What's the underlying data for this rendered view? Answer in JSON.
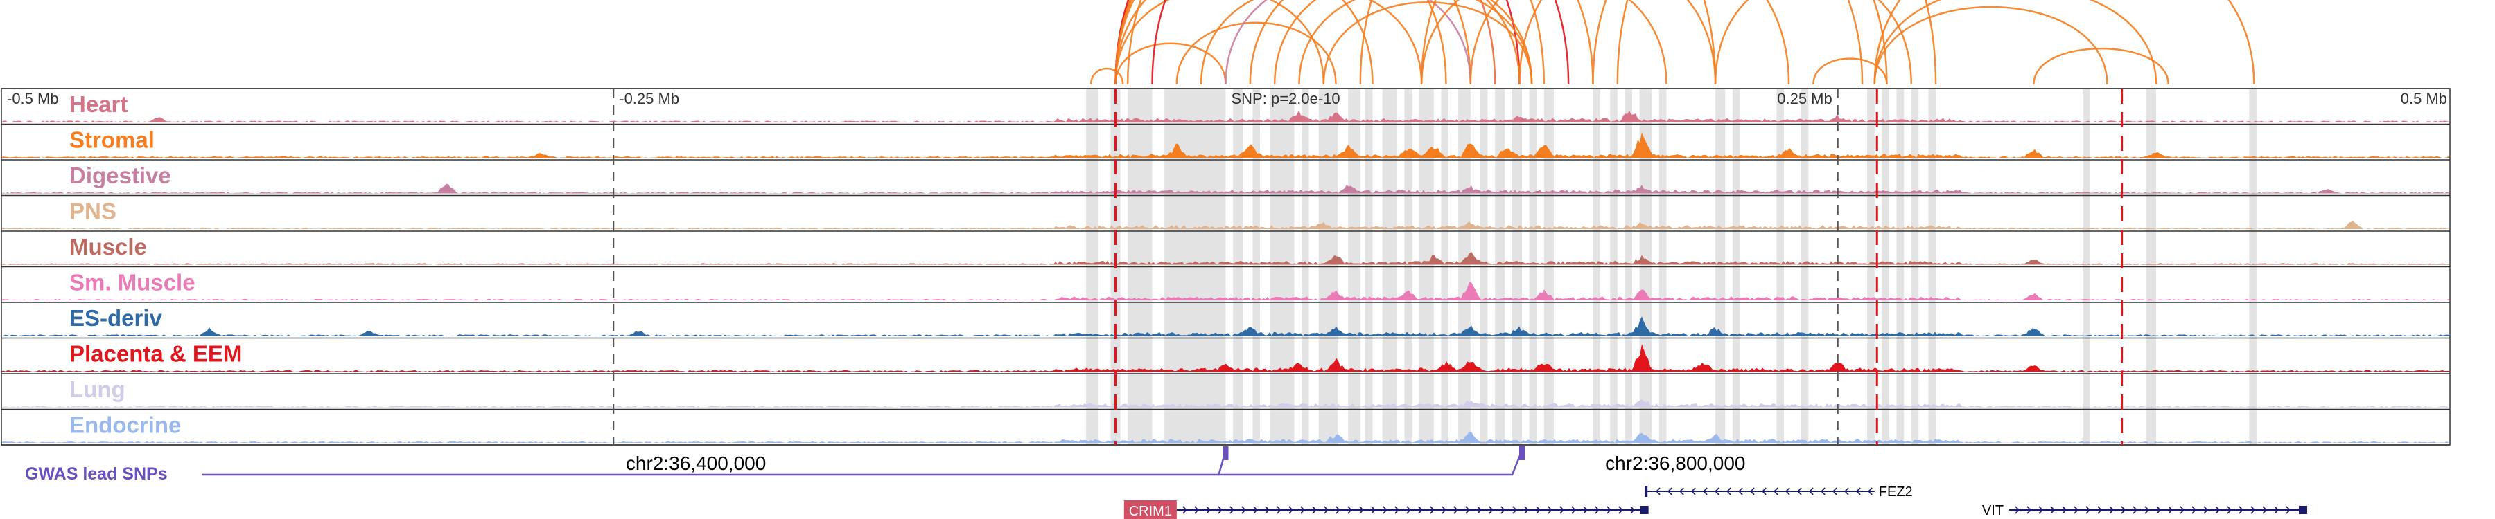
{
  "chart_data": {
    "type": "area",
    "title": "",
    "axis": {
      "ticks": [
        {
          "pos": -0.5,
          "label": "-0.5 Mb"
        },
        {
          "pos": -0.25,
          "label": "-0.25 Mb"
        },
        {
          "pos": 0.25,
          "label": "0.25 Mb"
        },
        {
          "pos": 0.5,
          "label": "0.5 Mb"
        }
      ],
      "range": [
        -0.5,
        0.5
      ],
      "unit": "Mb"
    },
    "snp_label": "SNP: p=2.0e-10",
    "tracks": [
      {
        "name": "Heart",
        "color": "#d77387",
        "peaks": [
          [
            -0.436,
            0.18
          ],
          [
            0.03,
            0.35
          ],
          [
            0.045,
            0.3
          ],
          [
            0.165,
            0.45
          ],
          [
            0.12,
            0.2
          ],
          [
            0.25,
            0.15
          ]
        ]
      },
      {
        "name": "Stromal",
        "color": "#f47e1f",
        "peaks": [
          [
            -0.28,
            0.2
          ],
          [
            -0.02,
            0.45
          ],
          [
            0.01,
            0.55
          ],
          [
            0.05,
            0.5
          ],
          [
            0.075,
            0.35
          ],
          [
            0.085,
            0.45
          ],
          [
            0.1,
            0.6
          ],
          [
            0.115,
            0.4
          ],
          [
            0.13,
            0.5
          ],
          [
            0.17,
            0.95
          ],
          [
            0.23,
            0.3
          ],
          [
            0.33,
            0.35
          ],
          [
            0.38,
            0.2
          ]
        ]
      },
      {
        "name": "Digestive",
        "color": "#c67fa1",
        "peaks": [
          [
            -0.318,
            0.45
          ],
          [
            0.05,
            0.25
          ],
          [
            0.1,
            0.2
          ],
          [
            0.17,
            0.25
          ],
          [
            0.45,
            0.2
          ]
        ]
      },
      {
        "name": "PNS",
        "color": "#e0b48e",
        "peaks": [
          [
            0.04,
            0.15
          ],
          [
            0.1,
            0.2
          ],
          [
            0.17,
            0.2
          ],
          [
            0.46,
            0.3
          ]
        ]
      },
      {
        "name": "Muscle",
        "color": "#bd6b62",
        "peaks": [
          [
            0.045,
            0.3
          ],
          [
            0.1,
            0.45
          ],
          [
            0.085,
            0.3
          ],
          [
            0.17,
            0.25
          ],
          [
            0.33,
            0.2
          ]
        ]
      },
      {
        "name": "Sm. Muscle",
        "color": "#ea7bb6",
        "peaks": [
          [
            0.045,
            0.35
          ],
          [
            0.075,
            0.3
          ],
          [
            0.1,
            0.6
          ],
          [
            0.13,
            0.3
          ],
          [
            0.17,
            0.35
          ],
          [
            0.33,
            0.3
          ]
        ]
      },
      {
        "name": "ES-deriv",
        "color": "#2e6ba6",
        "peaks": [
          [
            -0.415,
            0.3
          ],
          [
            -0.35,
            0.2
          ],
          [
            -0.24,
            0.2
          ],
          [
            0.01,
            0.3
          ],
          [
            0.045,
            0.3
          ],
          [
            0.1,
            0.35
          ],
          [
            0.12,
            0.3
          ],
          [
            0.17,
            0.7
          ],
          [
            0.2,
            0.25
          ],
          [
            0.33,
            0.35
          ]
        ]
      },
      {
        "name": "Placenta & EEM",
        "color": "#e3151c",
        "peaks": [
          [
            0.0,
            0.3
          ],
          [
            0.03,
            0.3
          ],
          [
            0.045,
            0.4
          ],
          [
            0.09,
            0.3
          ],
          [
            0.1,
            0.4
          ],
          [
            0.13,
            0.35
          ],
          [
            0.17,
            1.0
          ],
          [
            0.195,
            0.3
          ],
          [
            0.25,
            0.35
          ],
          [
            0.33,
            0.3
          ]
        ]
      },
      {
        "name": "Lung",
        "color": "#cfcde8",
        "peaks": [
          [
            0.1,
            0.2
          ],
          [
            0.17,
            0.3
          ]
        ]
      },
      {
        "name": "Endocrine",
        "color": "#9ab8eb",
        "peaks": [
          [
            0.045,
            0.3
          ],
          [
            0.1,
            0.4
          ],
          [
            0.17,
            0.4
          ],
          [
            0.2,
            0.25
          ]
        ]
      }
    ],
    "coords": [
      {
        "pos": -0.245,
        "label": "chr2:36,400,000"
      },
      {
        "pos": 0.155,
        "label": "chr2:36,800,000"
      }
    ],
    "gwas": {
      "label": "GWAS lead SNPs",
      "color": "#6a4fc0",
      "snps": [
        0.0,
        0.121
      ]
    },
    "genes": [
      {
        "name": "CRIM1",
        "start": -0.02,
        "end": 0.171,
        "strand": "+",
        "highlight": true,
        "color": "#d04f64"
      },
      {
        "name": "FEZ2",
        "start": 0.172,
        "end": 0.265,
        "strand": "-",
        "highlight": false,
        "color": "#1a1a6e"
      },
      {
        "name": "VIT",
        "start": 0.32,
        "end": 0.44,
        "strand": "+",
        "highlight": false,
        "color": "#1a1a6e"
      }
    ],
    "red_lines": [
      -0.045,
      0.266,
      0.366
    ],
    "gray_bands": [
      [
        -0.057,
        -0.052
      ],
      [
        -0.047,
        -0.043
      ],
      [
        -0.04,
        -0.03
      ],
      [
        -0.025,
        0.0
      ],
      [
        0.003,
        0.007
      ],
      [
        0.011,
        0.014
      ],
      [
        0.018,
        0.028
      ],
      [
        0.031,
        0.034
      ],
      [
        0.038,
        0.046
      ],
      [
        0.05,
        0.055
      ],
      [
        0.057,
        0.06
      ],
      [
        0.064,
        0.07
      ],
      [
        0.073,
        0.076
      ],
      [
        0.079,
        0.085
      ],
      [
        0.088,
        0.091
      ],
      [
        0.095,
        0.1
      ],
      [
        0.104,
        0.107
      ],
      [
        0.11,
        0.114
      ],
      [
        0.117,
        0.121
      ],
      [
        0.124,
        0.127
      ],
      [
        0.13,
        0.134
      ],
      [
        0.15,
        0.153
      ],
      [
        0.157,
        0.16
      ],
      [
        0.163,
        0.166
      ],
      [
        0.169,
        0.174
      ],
      [
        0.177,
        0.18
      ],
      [
        0.2,
        0.204
      ],
      [
        0.207,
        0.21
      ],
      [
        0.225,
        0.228
      ],
      [
        0.235,
        0.238
      ],
      [
        0.262,
        0.265
      ],
      [
        0.268,
        0.271
      ],
      [
        0.274,
        0.277
      ],
      [
        0.28,
        0.283
      ],
      [
        0.287,
        0.29
      ],
      [
        0.35,
        0.353
      ],
      [
        0.376,
        0.38
      ],
      [
        0.418,
        0.421
      ]
    ],
    "loops": [
      {
        "a": -0.055,
        "b": -0.042,
        "h": 0.12,
        "c": "#f47e1f"
      },
      {
        "a": -0.045,
        "b": 0.0,
        "h": 0.45,
        "c": "#f47e1f"
      },
      {
        "a": -0.045,
        "b": 0.04,
        "h": 0.72,
        "c": "#f47e1f"
      },
      {
        "a": -0.045,
        "b": 0.06,
        "h": 0.8,
        "c": "#f47e1f"
      },
      {
        "a": -0.045,
        "b": 0.09,
        "h": 0.88,
        "c": "#f47e1f"
      },
      {
        "a": -0.045,
        "b": 0.1,
        "h": 0.9,
        "c": "#f47e1f"
      },
      {
        "a": -0.045,
        "b": 0.11,
        "h": 0.93,
        "c": "#ec6a3c"
      },
      {
        "a": -0.045,
        "b": 0.12,
        "h": 0.95,
        "c": "#e3151c"
      },
      {
        "a": -0.04,
        "b": 0.13,
        "h": 0.97,
        "c": "#f47e1f"
      },
      {
        "a": -0.03,
        "b": 0.14,
        "h": 0.98,
        "c": "#e3151c"
      },
      {
        "a": -0.045,
        "b": 0.15,
        "h": 1.0,
        "c": "#f47e1f"
      },
      {
        "a": -0.02,
        "b": 0.045,
        "h": 0.55,
        "c": "#f47e1f"
      },
      {
        "a": -0.01,
        "b": 0.08,
        "h": 0.7,
        "c": "#f47e1f"
      },
      {
        "a": 0.0,
        "b": 0.1,
        "h": 0.72,
        "c": "#c67fa1"
      },
      {
        "a": 0.01,
        "b": 0.12,
        "h": 0.75,
        "c": "#f47e1f"
      },
      {
        "a": 0.02,
        "b": 0.125,
        "h": 0.7,
        "c": "#f47e1f"
      },
      {
        "a": 0.03,
        "b": 0.125,
        "h": 0.66,
        "c": "#f47e1f"
      },
      {
        "a": 0.04,
        "b": 0.125,
        "h": 0.6,
        "c": "#f47e1f"
      },
      {
        "a": 0.08,
        "b": 0.18,
        "h": 0.75,
        "c": "#f47e1f"
      },
      {
        "a": 0.1,
        "b": 0.2,
        "h": 0.85,
        "c": "#f47e1f"
      },
      {
        "a": 0.12,
        "b": 0.23,
        "h": 0.9,
        "c": "#f47e1f"
      },
      {
        "a": 0.08,
        "b": 0.26,
        "h": 1.2,
        "c": "#f47e1f"
      },
      {
        "a": 0.15,
        "b": 0.27,
        "h": 1.1,
        "c": "#f47e1f"
      },
      {
        "a": 0.2,
        "b": 0.28,
        "h": 0.9,
        "c": "#f47e1f"
      },
      {
        "a": 0.16,
        "b": 0.29,
        "h": 1.3,
        "c": "#f47e1f"
      },
      {
        "a": 0.055,
        "b": 0.2,
        "h": 1.1,
        "c": "#f47e1f"
      },
      {
        "a": 0.24,
        "b": 0.27,
        "h": 0.3,
        "c": "#f47e1f"
      },
      {
        "a": 0.265,
        "b": 0.36,
        "h": 0.5,
        "c": "#f47e1f"
      },
      {
        "a": 0.265,
        "b": 0.38,
        "h": 0.55,
        "c": "#f47e1f"
      },
      {
        "a": 0.265,
        "b": 0.42,
        "h": 0.7,
        "c": "#f47e1f"
      },
      {
        "a": 0.33,
        "b": 0.385,
        "h": 0.3,
        "c": "#f47e1f"
      }
    ]
  }
}
